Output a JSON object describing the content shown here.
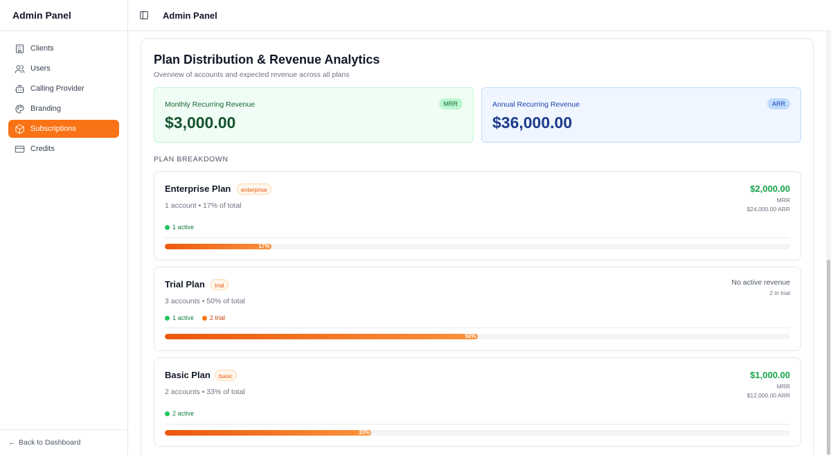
{
  "sidebar": {
    "title": "Admin Panel",
    "items": [
      {
        "label": "Clients",
        "icon": "building-icon"
      },
      {
        "label": "Users",
        "icon": "users-icon"
      },
      {
        "label": "Calling Provider",
        "icon": "bot-icon"
      },
      {
        "label": "Branding",
        "icon": "palette-icon"
      },
      {
        "label": "Subscriptions",
        "icon": "package-icon",
        "active": true
      },
      {
        "label": "Credits",
        "icon": "credit-card-icon"
      }
    ],
    "footer": {
      "arrow": "←",
      "label": "Back to Dashboard"
    }
  },
  "header": {
    "title": "Admin Panel",
    "toggle_icon": "sidebar-toggle-icon"
  },
  "main": {
    "title": "Plan Distribution & Revenue Analytics",
    "subtitle": "Overview of accounts and expected revenue across all plans",
    "mrr": {
      "label": "Monthly Recurring Revenue",
      "badge": "MRR",
      "value": "$3,000.00",
      "color": "#14532d"
    },
    "arr": {
      "label": "Annual Recurring Revenue",
      "badge": "ARR",
      "value": "$36,000.00",
      "color": "#1e3a8a"
    },
    "section_label": "PLAN BREAKDOWN",
    "plans": [
      {
        "name": "Enterprise Plan",
        "tag": "enterprise",
        "meta": "1 account • 17% of total",
        "active": "1 active",
        "percent": 17,
        "percent_label": "17%",
        "amount": "$2,000.00",
        "amount_sub": "MRR",
        "arr": "$24,000.00 ARR"
      },
      {
        "name": "Trial Plan",
        "tag": "trial",
        "meta": "3 accounts • 50% of total",
        "active": "1 active",
        "trial": "2 trial",
        "percent": 50,
        "percent_label": "50%",
        "no_revenue": "No active revenue",
        "trial_note": "2 in trial"
      },
      {
        "name": "Basic Plan",
        "tag": "basic",
        "meta": "2 accounts • 33% of total",
        "active": "2 active",
        "percent": 33,
        "percent_label": "33%",
        "amount": "$1,000.00",
        "amount_sub": "MRR",
        "arr": "$12,000.00 ARR"
      }
    ]
  },
  "colors": {
    "accent": "#f97316",
    "positive": "#16a34a"
  }
}
